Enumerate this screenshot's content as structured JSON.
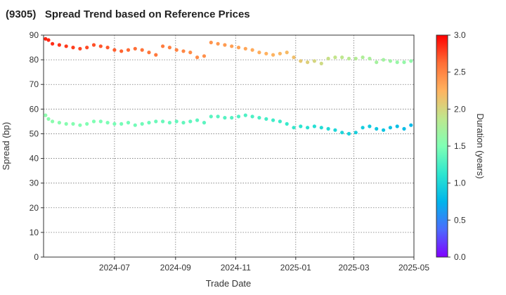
{
  "chart_data": {
    "type": "scatter",
    "title": "(9305)   Spread Trend based on Reference Prices",
    "xlabel": "Trade Date",
    "ylabel": "Spread (bp)",
    "colorbar_label": "Duration (years)",
    "colormap": "rainbow",
    "xlim": [
      "2024-04-20",
      "2025-05-01"
    ],
    "ylim": [
      0,
      90
    ],
    "clim": [
      0,
      3
    ],
    "grid": true,
    "x_ticks": [
      {
        "date": "2024-07-01",
        "label": "2024-07"
      },
      {
        "date": "2024-09-01",
        "label": "2024-09"
      },
      {
        "date": "2024-11-01",
        "label": "2024-11"
      },
      {
        "date": "2025-01-01",
        "label": "2025-01"
      },
      {
        "date": "2025-03-01",
        "label": "2025-03"
      },
      {
        "date": "2025-05-01",
        "label": "2025-05"
      }
    ],
    "y_ticks": [
      0,
      10,
      20,
      30,
      40,
      50,
      60,
      70,
      80,
      90
    ],
    "colorbar_ticks": [
      "0.0",
      "0.5",
      "1.0",
      "1.5",
      "2.0",
      "2.5",
      "3.0"
    ],
    "series": [
      {
        "points": [
          [
            "2024-04-22",
            88.5,
            2.88
          ],
          [
            "2024-04-25",
            88.0,
            2.87
          ],
          [
            "2024-04-29",
            86.5,
            2.85
          ],
          [
            "2024-05-06",
            86.0,
            2.83
          ],
          [
            "2024-05-13",
            85.5,
            2.81
          ],
          [
            "2024-05-20",
            85.0,
            2.79
          ],
          [
            "2024-05-27",
            84.5,
            2.77
          ],
          [
            "2024-06-03",
            85.0,
            2.75
          ],
          [
            "2024-06-10",
            86.0,
            2.73
          ],
          [
            "2024-06-17",
            85.5,
            2.71
          ],
          [
            "2024-06-24",
            85.0,
            2.7
          ],
          [
            "2024-07-01",
            84.0,
            2.68
          ],
          [
            "2024-07-08",
            83.5,
            2.66
          ],
          [
            "2024-07-15",
            84.0,
            2.64
          ],
          [
            "2024-07-22",
            84.5,
            2.62
          ],
          [
            "2024-07-29",
            84.0,
            2.6
          ],
          [
            "2024-08-05",
            83.0,
            2.58
          ],
          [
            "2024-08-12",
            82.0,
            2.57
          ],
          [
            "2024-08-19",
            85.5,
            2.55
          ],
          [
            "2024-08-26",
            85.0,
            2.53
          ],
          [
            "2024-09-02",
            84.0,
            2.51
          ],
          [
            "2024-09-09",
            83.5,
            2.49
          ],
          [
            "2024-09-16",
            83.0,
            2.47
          ],
          [
            "2024-09-23",
            81.0,
            2.46
          ],
          [
            "2024-09-30",
            81.5,
            2.44
          ],
          [
            "2024-10-07",
            87.0,
            2.42
          ],
          [
            "2024-10-14",
            86.5,
            2.4
          ],
          [
            "2024-10-21",
            86.0,
            2.38
          ],
          [
            "2024-10-28",
            85.5,
            2.36
          ],
          [
            "2024-11-04",
            85.0,
            2.34
          ],
          [
            "2024-11-11",
            84.5,
            2.32
          ],
          [
            "2024-11-18",
            84.0,
            2.3
          ],
          [
            "2024-11-25",
            83.0,
            2.28
          ],
          [
            "2024-12-02",
            82.5,
            2.26
          ],
          [
            "2024-12-09",
            82.0,
            2.24
          ],
          [
            "2024-12-16",
            82.5,
            2.22
          ],
          [
            "2024-12-23",
            83.0,
            2.2
          ],
          [
            "2024-12-30",
            81.0,
            2.16
          ],
          [
            "2025-01-06",
            79.5,
            2.1
          ],
          [
            "2025-01-13",
            79.0,
            2.05
          ],
          [
            "2025-01-20",
            79.5,
            2.0
          ],
          [
            "2025-01-27",
            78.5,
            1.96
          ],
          [
            "2025-02-03",
            80.5,
            1.93
          ],
          [
            "2025-02-10",
            81.0,
            1.9
          ],
          [
            "2025-02-17",
            81.0,
            1.87
          ],
          [
            "2025-02-24",
            80.5,
            1.84
          ],
          [
            "2025-03-03",
            80.5,
            1.81
          ],
          [
            "2025-03-10",
            81.0,
            1.78
          ],
          [
            "2025-03-17",
            80.5,
            1.75
          ],
          [
            "2025-03-24",
            79.0,
            1.72
          ],
          [
            "2025-03-31",
            80.0,
            1.7
          ],
          [
            "2025-04-07",
            79.5,
            1.67
          ],
          [
            "2025-04-14",
            79.0,
            1.64
          ],
          [
            "2025-04-21",
            79.0,
            1.62
          ],
          [
            "2025-04-28",
            79.5,
            1.6
          ]
        ]
      },
      {
        "points": [
          [
            "2024-04-22",
            57.5,
            1.58
          ],
          [
            "2024-04-25",
            56.0,
            1.57
          ],
          [
            "2024-04-29",
            55.0,
            1.56
          ],
          [
            "2024-05-06",
            54.5,
            1.55
          ],
          [
            "2024-05-13",
            54.0,
            1.54
          ],
          [
            "2024-05-20",
            54.0,
            1.53
          ],
          [
            "2024-05-27",
            53.5,
            1.52
          ],
          [
            "2024-06-03",
            54.0,
            1.51
          ],
          [
            "2024-06-10",
            55.0,
            1.5
          ],
          [
            "2024-06-17",
            55.0,
            1.49
          ],
          [
            "2024-06-24",
            54.5,
            1.48
          ],
          [
            "2024-07-01",
            54.0,
            1.47
          ],
          [
            "2024-07-08",
            54.0,
            1.46
          ],
          [
            "2024-07-15",
            54.5,
            1.45
          ],
          [
            "2024-07-22",
            53.5,
            1.44
          ],
          [
            "2024-07-29",
            54.0,
            1.43
          ],
          [
            "2024-08-05",
            54.5,
            1.42
          ],
          [
            "2024-08-12",
            55.0,
            1.41
          ],
          [
            "2024-08-19",
            55.0,
            1.4
          ],
          [
            "2024-08-26",
            54.5,
            1.39
          ],
          [
            "2024-09-02",
            55.0,
            1.38
          ],
          [
            "2024-09-09",
            54.5,
            1.37
          ],
          [
            "2024-09-16",
            55.0,
            1.36
          ],
          [
            "2024-09-23",
            55.5,
            1.35
          ],
          [
            "2024-09-30",
            54.5,
            1.34
          ],
          [
            "2024-10-07",
            57.0,
            1.33
          ],
          [
            "2024-10-14",
            57.0,
            1.32
          ],
          [
            "2024-10-21",
            56.5,
            1.31
          ],
          [
            "2024-10-28",
            56.5,
            1.3
          ],
          [
            "2024-11-04",
            57.0,
            1.29
          ],
          [
            "2024-11-11",
            57.5,
            1.28
          ],
          [
            "2024-11-18",
            57.0,
            1.27
          ],
          [
            "2024-11-25",
            56.5,
            1.26
          ],
          [
            "2024-12-02",
            56.0,
            1.24
          ],
          [
            "2024-12-09",
            55.5,
            1.22
          ],
          [
            "2024-12-16",
            55.0,
            1.2
          ],
          [
            "2024-12-23",
            54.0,
            1.18
          ],
          [
            "2024-12-30",
            52.5,
            1.16
          ],
          [
            "2025-01-06",
            53.0,
            1.12
          ],
          [
            "2025-01-13",
            52.5,
            1.09
          ],
          [
            "2025-01-20",
            53.0,
            1.07
          ],
          [
            "2025-01-27",
            52.5,
            1.05
          ],
          [
            "2025-02-03",
            52.0,
            1.03
          ],
          [
            "2025-02-10",
            51.5,
            1.01
          ],
          [
            "2025-02-17",
            50.5,
            0.99
          ],
          [
            "2025-02-24",
            50.0,
            0.97
          ],
          [
            "2025-03-03",
            50.5,
            0.95
          ],
          [
            "2025-03-10",
            52.5,
            0.93
          ],
          [
            "2025-03-17",
            53.0,
            0.91
          ],
          [
            "2025-03-24",
            52.0,
            0.89
          ],
          [
            "2025-03-31",
            51.5,
            0.87
          ],
          [
            "2025-04-07",
            52.5,
            0.85
          ],
          [
            "2025-04-14",
            53.0,
            0.83
          ],
          [
            "2025-04-21",
            52.0,
            0.81
          ],
          [
            "2025-04-28",
            53.5,
            0.79
          ]
        ]
      }
    ]
  }
}
